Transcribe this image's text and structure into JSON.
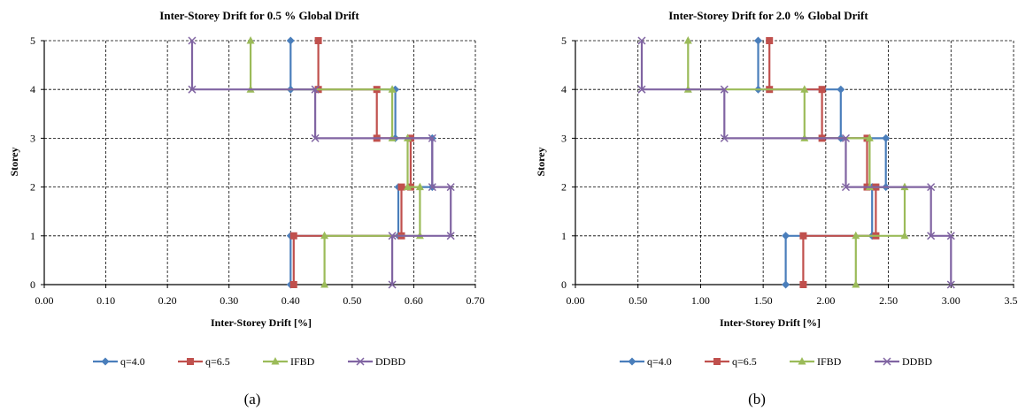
{
  "colors": {
    "q40": "#4a7ebb",
    "q65": "#c0504d",
    "ifbd": "#9bbb59",
    "ddbd": "#8064a2"
  },
  "charts": [
    {
      "caption": "(a)",
      "chart_data": {
        "type": "line",
        "title": "Inter-Storey Drift for 0.5 % Global Drift",
        "xlabel": "Inter-Storey Drift [%]",
        "ylabel": "Storey",
        "xlim": [
          0,
          0.7
        ],
        "ylim": [
          0,
          5
        ],
        "xticks": [
          "0.00",
          "0.10",
          "0.20",
          "0.30",
          "0.40",
          "0.50",
          "0.60",
          "0.70"
        ],
        "yticks": [
          "0",
          "1",
          "2",
          "3",
          "4",
          "5"
        ],
        "grid": true,
        "legend": "bottom",
        "series": [
          {
            "name": "q=4.0",
            "marker": "diamond",
            "colorKey": "q40",
            "points": [
              [
                0.4,
                0
              ],
              [
                0.4,
                1
              ],
              [
                0.575,
                1
              ],
              [
                0.575,
                2
              ],
              [
                0.63,
                2
              ],
              [
                0.63,
                3
              ],
              [
                0.57,
                3
              ],
              [
                0.57,
                4
              ],
              [
                0.4,
                4
              ],
              [
                0.4,
                5
              ]
            ]
          },
          {
            "name": "q=6.5",
            "marker": "square",
            "colorKey": "q65",
            "points": [
              [
                0.405,
                0
              ],
              [
                0.405,
                1
              ],
              [
                0.58,
                1
              ],
              [
                0.58,
                2
              ],
              [
                0.595,
                2
              ],
              [
                0.595,
                3
              ],
              [
                0.54,
                3
              ],
              [
                0.54,
                4
              ],
              [
                0.445,
                4
              ],
              [
                0.445,
                5
              ]
            ]
          },
          {
            "name": "IFBD",
            "marker": "triangle",
            "colorKey": "ifbd",
            "points": [
              [
                0.455,
                0
              ],
              [
                0.455,
                1
              ],
              [
                0.61,
                1
              ],
              [
                0.61,
                2
              ],
              [
                0.59,
                2
              ],
              [
                0.59,
                3
              ],
              [
                0.565,
                3
              ],
              [
                0.565,
                4
              ],
              [
                0.335,
                4
              ],
              [
                0.335,
                5
              ]
            ]
          },
          {
            "name": "DDBD",
            "marker": "x",
            "colorKey": "ddbd",
            "points": [
              [
                0.565,
                0
              ],
              [
                0.565,
                1
              ],
              [
                0.66,
                1
              ],
              [
                0.66,
                2
              ],
              [
                0.63,
                2
              ],
              [
                0.63,
                3
              ],
              [
                0.44,
                3
              ],
              [
                0.44,
                4
              ],
              [
                0.24,
                4
              ],
              [
                0.24,
                5
              ]
            ]
          }
        ]
      }
    },
    {
      "caption": "(b)",
      "chart_data": {
        "type": "line",
        "title": "Inter-Storey Drift for 2.0 % Global Drift",
        "xlabel": "Inter-Storey Drift [%]",
        "ylabel": "Storey",
        "xlim": [
          0,
          3.5
        ],
        "ylim": [
          0,
          5
        ],
        "xticks": [
          "0.00",
          "0.50",
          "1.00",
          "1.50",
          "2.00",
          "2.50",
          "3.00",
          "3.50"
        ],
        "yticks": [
          "0",
          "1",
          "2",
          "3",
          "4",
          "5"
        ],
        "grid": true,
        "legend": "bottom",
        "series": [
          {
            "name": "q=4.0",
            "marker": "diamond",
            "colorKey": "q40",
            "points": [
              [
                1.68,
                0
              ],
              [
                1.68,
                1
              ],
              [
                2.37,
                1
              ],
              [
                2.37,
                2
              ],
              [
                2.48,
                2
              ],
              [
                2.48,
                3
              ],
              [
                2.12,
                3
              ],
              [
                2.12,
                4
              ],
              [
                1.46,
                4
              ],
              [
                1.46,
                5
              ]
            ]
          },
          {
            "name": "q=6.5",
            "marker": "square",
            "colorKey": "q65",
            "points": [
              [
                1.82,
                0
              ],
              [
                1.82,
                1
              ],
              [
                2.4,
                1
              ],
              [
                2.4,
                2
              ],
              [
                2.33,
                2
              ],
              [
                2.33,
                3
              ],
              [
                1.97,
                3
              ],
              [
                1.97,
                4
              ],
              [
                1.55,
                4
              ],
              [
                1.55,
                5
              ]
            ]
          },
          {
            "name": "IFBD",
            "marker": "triangle",
            "colorKey": "ifbd",
            "points": [
              [
                2.24,
                0
              ],
              [
                2.24,
                1
              ],
              [
                2.63,
                1
              ],
              [
                2.63,
                2
              ],
              [
                2.35,
                2
              ],
              [
                2.35,
                3
              ],
              [
                1.83,
                3
              ],
              [
                1.83,
                4
              ],
              [
                0.9,
                4
              ],
              [
                0.9,
                5
              ]
            ]
          },
          {
            "name": "DDBD",
            "marker": "x",
            "colorKey": "ddbd",
            "points": [
              [
                3.0,
                0
              ],
              [
                3.0,
                1
              ],
              [
                2.84,
                1
              ],
              [
                2.84,
                2
              ],
              [
                2.16,
                2
              ],
              [
                2.16,
                3
              ],
              [
                1.19,
                3
              ],
              [
                1.19,
                4
              ],
              [
                0.53,
                4
              ],
              [
                0.53,
                5
              ]
            ]
          }
        ]
      }
    }
  ]
}
